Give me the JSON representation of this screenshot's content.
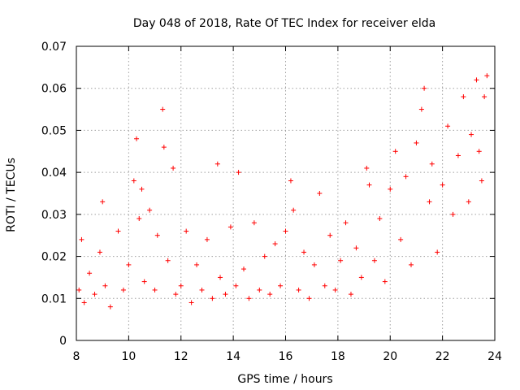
{
  "chart_data": {
    "type": "scatter",
    "title": "Day 048 of 2018, Rate Of TEC Index for receiver elda",
    "xlabel": "GPS time / hours",
    "ylabel": "ROTI / TECUs",
    "xlim": [
      8,
      24
    ],
    "ylim": [
      0,
      0.07
    ],
    "xticks": [
      8,
      10,
      12,
      14,
      16,
      18,
      20,
      22,
      24
    ],
    "xtick_labels": [
      "8",
      "10",
      "12",
      "14",
      "16",
      "18",
      "20",
      "22",
      "24"
    ],
    "yticks": [
      0,
      0.01,
      0.02,
      0.03,
      0.04,
      0.05,
      0.06,
      0.07
    ],
    "ytick_labels": [
      "0",
      "0.01",
      "0.02",
      "0.03",
      "0.04",
      "0.05",
      "0.06",
      "0.07"
    ],
    "grid": true,
    "marker": "+",
    "color": "#ff0000",
    "series": [
      {
        "name": "ROTI",
        "x": [
          8.1,
          8.2,
          8.3,
          8.5,
          8.7,
          8.9,
          9.0,
          9.1,
          9.3,
          9.6,
          9.8,
          10.0,
          10.2,
          10.3,
          10.4,
          10.5,
          10.6,
          10.8,
          11.0,
          11.1,
          11.3,
          11.35,
          11.5,
          11.7,
          11.8,
          12.0,
          12.2,
          12.4,
          12.6,
          12.8,
          13.0,
          13.2,
          13.4,
          13.5,
          13.7,
          13.9,
          14.1,
          14.2,
          14.4,
          14.6,
          14.8,
          15.0,
          15.2,
          15.4,
          15.6,
          15.8,
          16.0,
          16.2,
          16.3,
          16.5,
          16.7,
          16.9,
          17.1,
          17.3,
          17.5,
          17.7,
          17.9,
          18.1,
          18.3,
          18.5,
          18.7,
          18.9,
          19.1,
          19.2,
          19.4,
          19.6,
          19.8,
          20.0,
          20.2,
          20.4,
          20.6,
          20.8,
          21.0,
          21.2,
          21.3,
          21.5,
          21.6,
          21.8,
          22.0,
          22.2,
          22.4,
          22.6,
          22.8,
          23.0,
          23.1,
          23.3,
          23.4,
          23.5,
          23.6,
          23.7
        ],
        "y": [
          0.012,
          0.024,
          0.009,
          0.016,
          0.011,
          0.021,
          0.033,
          0.013,
          0.008,
          0.026,
          0.012,
          0.018,
          0.038,
          0.048,
          0.029,
          0.036,
          0.014,
          0.031,
          0.012,
          0.025,
          0.055,
          0.046,
          0.019,
          0.041,
          0.011,
          0.013,
          0.026,
          0.009,
          0.018,
          0.012,
          0.024,
          0.01,
          0.042,
          0.015,
          0.011,
          0.027,
          0.013,
          0.04,
          0.017,
          0.01,
          0.028,
          0.012,
          0.02,
          0.011,
          0.023,
          0.013,
          0.026,
          0.038,
          0.031,
          0.012,
          0.021,
          0.01,
          0.018,
          0.035,
          0.013,
          0.025,
          0.012,
          0.019,
          0.028,
          0.011,
          0.022,
          0.015,
          0.041,
          0.037,
          0.019,
          0.029,
          0.014,
          0.036,
          0.045,
          0.024,
          0.039,
          0.018,
          0.047,
          0.055,
          0.06,
          0.033,
          0.042,
          0.021,
          0.037,
          0.051,
          0.03,
          0.044,
          0.058,
          0.033,
          0.049,
          0.062,
          0.045,
          0.038,
          0.058,
          0.063
        ]
      }
    ]
  }
}
